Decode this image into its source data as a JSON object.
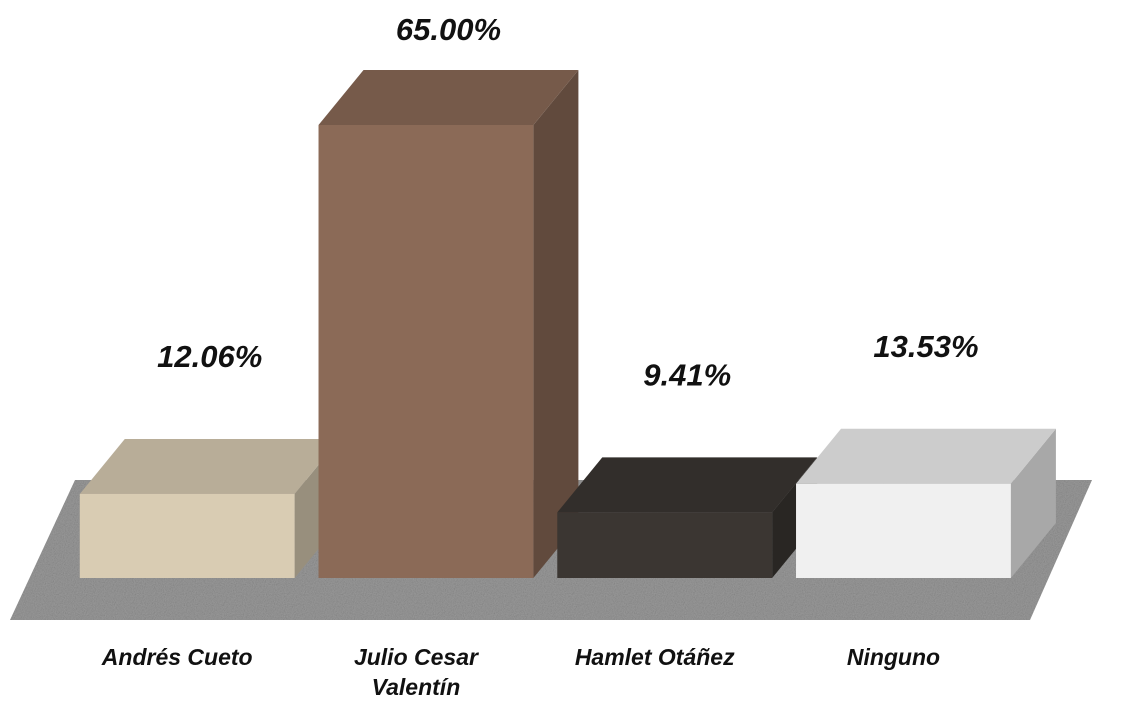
{
  "chart_data": {
    "type": "bar3d",
    "categories": [
      "Andrés Cueto",
      "Julio Cesar Valentín",
      "Hamlet Otáñez",
      "Ninguno"
    ],
    "values": [
      12.06,
      65.0,
      9.41,
      13.53
    ],
    "value_labels": [
      "12.06%",
      "65.00%",
      "9.41%",
      "13.53%"
    ],
    "colors": [
      "#d9ccb3",
      "#8b6a57",
      "#3b3632",
      "#f0f0f0"
    ]
  }
}
